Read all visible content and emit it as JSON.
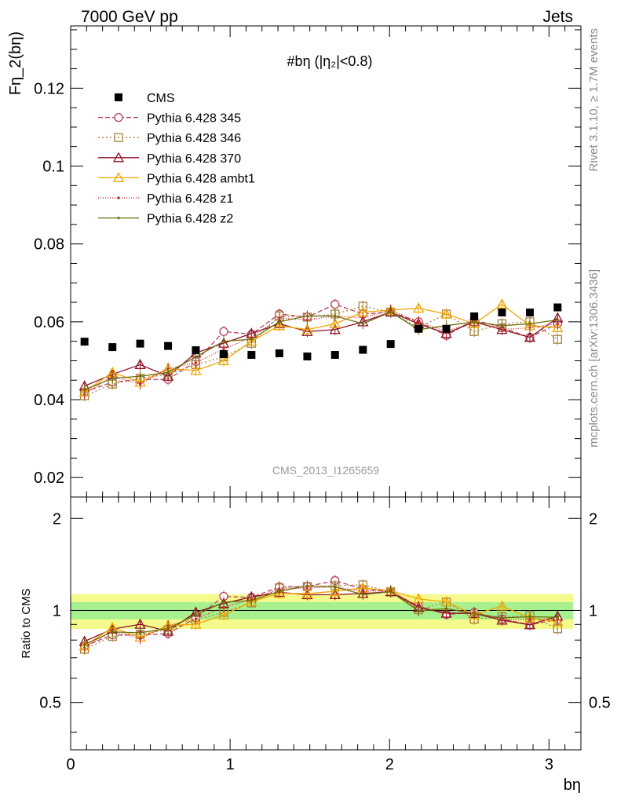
{
  "header": {
    "left": "7000 GeV pp",
    "right": "Jets"
  },
  "side_labels": {
    "rivet": "Rivet 3.1.10, ≥ 1.7M events",
    "mcplots": "mcplots.cern.ch [arXiv:1306.3436]"
  },
  "chart_data": {
    "type": "scatter",
    "title": "#bη (|η₂|<0.8)",
    "watermark": "CMS_2013_I1265659",
    "xlabel": "bη",
    "ylabel": "Fη_2(bη)",
    "ratio_ylabel": "Ratio to CMS",
    "xlim": [
      0,
      3.2
    ],
    "ylim": [
      0.015,
      0.136
    ],
    "ratio_ylim": [
      0.35,
      2.35
    ],
    "x_ticks": [
      "0",
      "1",
      "2",
      "3"
    ],
    "y_ticks": [
      "0.02",
      "0.04",
      "0.06",
      "0.08",
      "0.1",
      "0.12"
    ],
    "ratio_ticks": [
      "0.5",
      "1",
      "2"
    ],
    "legend_position": "top-left",
    "x": [
      0.087,
      0.262,
      0.436,
      0.611,
      0.785,
      0.96,
      1.134,
      1.309,
      1.484,
      1.658,
      1.833,
      2.007,
      2.182,
      2.356,
      2.531,
      2.705,
      2.88,
      3.054
    ],
    "data": {
      "name": "CMS",
      "values": [
        0.0549,
        0.0535,
        0.0544,
        0.0538,
        0.0527,
        0.0517,
        0.0515,
        0.0519,
        0.0511,
        0.0515,
        0.0528,
        0.0543,
        0.0582,
        0.0582,
        0.0614,
        0.0624,
        0.0624,
        0.0637
      ]
    },
    "series": [
      {
        "name": "Pythia 6.428 345",
        "color": "#b5405a",
        "dash": "6,3",
        "marker": "circle",
        "values": [
          0.042,
          0.0445,
          0.0452,
          0.0452,
          0.0498,
          0.0575,
          0.0568,
          0.062,
          0.0612,
          0.0645,
          0.062,
          0.0625,
          0.06,
          0.0565,
          0.0605,
          0.0585,
          0.056,
          0.0595
        ]
      },
      {
        "name": "Pythia 6.428 346",
        "color": "#a58440",
        "dash": "2,3",
        "marker": "square",
        "values": [
          0.041,
          0.044,
          0.0455,
          0.0465,
          0.049,
          0.051,
          0.0545,
          0.0615,
          0.0612,
          0.062,
          0.064,
          0.0625,
          0.0585,
          0.062,
          0.0575,
          0.0595,
          0.06,
          0.0555
        ]
      },
      {
        "name": "Pythia 6.428 370",
        "color": "#8b1025",
        "dash": "",
        "marker": "triangle",
        "values": [
          0.0435,
          0.0465,
          0.049,
          0.046,
          0.052,
          0.0545,
          0.057,
          0.0595,
          0.0575,
          0.058,
          0.06,
          0.0625,
          0.0595,
          0.057,
          0.06,
          0.058,
          0.056,
          0.061
        ]
      },
      {
        "name": "Pythia 6.428 ambt1",
        "color": "#f2a400",
        "dash": "",
        "marker": "triangle-open",
        "values": [
          0.042,
          0.047,
          0.0445,
          0.048,
          0.0475,
          0.05,
          0.055,
          0.059,
          0.058,
          0.0595,
          0.0625,
          0.063,
          0.0635,
          0.062,
          0.0595,
          0.0645,
          0.059,
          0.0585
        ]
      },
      {
        "name": "Pythia 6.428 z1",
        "color": "#cc1f1f",
        "dash": "1,2",
        "marker": "dot",
        "values": [
          0.0415,
          0.046,
          0.044,
          0.048,
          0.0495,
          0.053,
          0.056,
          0.061,
          0.0605,
          0.0615,
          0.061,
          0.063,
          0.06,
          0.0575,
          0.06,
          0.058,
          0.0585,
          0.0595
        ]
      },
      {
        "name": "Pythia 6.428 z2",
        "color": "#6e6e0a",
        "dash": "",
        "marker": "dot",
        "values": [
          0.0425,
          0.0455,
          0.046,
          0.047,
          0.051,
          0.055,
          0.0555,
          0.06,
          0.0615,
          0.0615,
          0.0595,
          0.0625,
          0.058,
          0.059,
          0.06,
          0.059,
          0.0595,
          0.0605
        ]
      }
    ]
  }
}
